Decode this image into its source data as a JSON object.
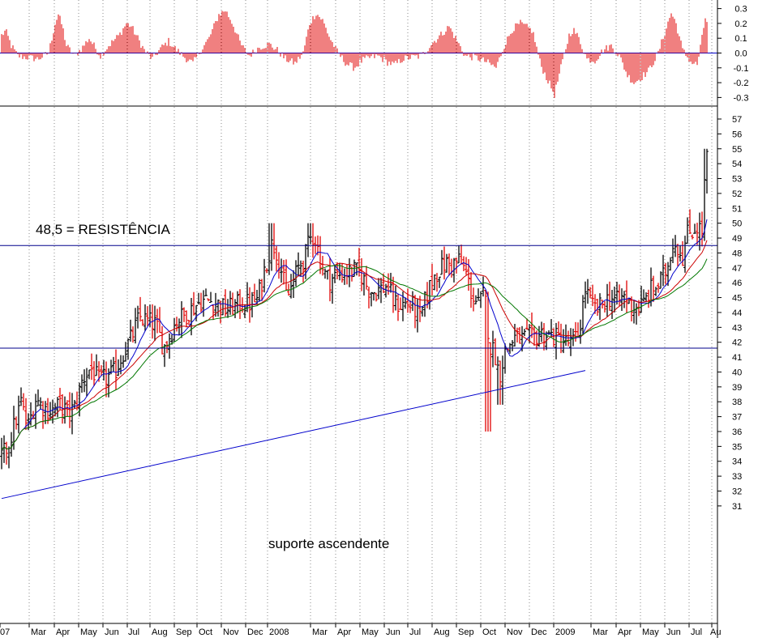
{
  "chart_data": [
    {
      "panel": "oscillator",
      "type": "bar",
      "yticks": [
        0.3,
        0.2,
        0.1,
        0.0,
        -0.1,
        -0.2,
        -0.3
      ],
      "ylim": [
        -0.36,
        0.36
      ],
      "zero_line": true,
      "bar_color": "#e00000",
      "anchors": [
        [
          0,
          0.12
        ],
        [
          5,
          0.15
        ],
        [
          12,
          0.05
        ],
        [
          20,
          -0.02
        ],
        [
          32,
          -0.03
        ],
        [
          45,
          -0.04
        ],
        [
          58,
          0.0
        ],
        [
          66,
          0.2
        ],
        [
          70,
          0.26
        ],
        [
          75,
          0.18
        ],
        [
          80,
          0.05
        ],
        [
          90,
          -0.02
        ],
        [
          100,
          0.04
        ],
        [
          108,
          0.1
        ],
        [
          115,
          0.04
        ],
        [
          122,
          -0.02
        ],
        [
          132,
          0.05
        ],
        [
          145,
          0.12
        ],
        [
          154,
          0.2
        ],
        [
          160,
          0.18
        ],
        [
          168,
          0.1
        ],
        [
          176,
          0.02
        ],
        [
          186,
          -0.04
        ],
        [
          196,
          0.03
        ],
        [
          206,
          0.08
        ],
        [
          216,
          0.02
        ],
        [
          226,
          -0.03
        ],
        [
          236,
          -0.07
        ],
        [
          246,
          0.02
        ],
        [
          256,
          0.1
        ],
        [
          268,
          0.26
        ],
        [
          276,
          0.29
        ],
        [
          285,
          0.2
        ],
        [
          295,
          0.06
        ],
        [
          305,
          -0.02
        ],
        [
          318,
          0.04
        ],
        [
          330,
          0.06
        ],
        [
          340,
          0.02
        ],
        [
          350,
          -0.04
        ],
        [
          362,
          -0.07
        ],
        [
          372,
          0.0
        ],
        [
          380,
          0.2
        ],
        [
          388,
          0.27
        ],
        [
          396,
          0.22
        ],
        [
          405,
          0.1
        ],
        [
          415,
          0.0
        ],
        [
          425,
          -0.07
        ],
        [
          435,
          -0.1
        ],
        [
          445,
          -0.05
        ],
        [
          455,
          -0.03
        ],
        [
          465,
          -0.02
        ],
        [
          475,
          -0.06
        ],
        [
          485,
          -0.08
        ],
        [
          495,
          -0.04
        ],
        [
          505,
          -0.03
        ],
        [
          518,
          -0.02
        ],
        [
          530,
          0.06
        ],
        [
          545,
          0.14
        ],
        [
          552,
          0.18
        ],
        [
          560,
          0.1
        ],
        [
          572,
          -0.02
        ],
        [
          585,
          -0.03
        ],
        [
          598,
          -0.06
        ],
        [
          610,
          -0.1
        ],
        [
          620,
          0.05
        ],
        [
          630,
          0.16
        ],
        [
          640,
          0.2
        ],
        [
          655,
          0.15
        ],
        [
          665,
          -0.08
        ],
        [
          675,
          -0.2
        ],
        [
          682,
          -0.28
        ],
        [
          690,
          -0.1
        ],
        [
          700,
          0.12
        ],
        [
          705,
          0.16
        ],
        [
          712,
          0.1
        ],
        [
          722,
          -0.04
        ],
        [
          732,
          -0.05
        ],
        [
          742,
          0.02
        ],
        [
          752,
          0.05
        ],
        [
          762,
          -0.02
        ],
        [
          772,
          -0.15
        ],
        [
          780,
          -0.2
        ],
        [
          788,
          -0.17
        ],
        [
          798,
          -0.12
        ],
        [
          810,
          0.0
        ],
        [
          818,
          0.14
        ],
        [
          826,
          0.27
        ],
        [
          832,
          0.2
        ],
        [
          840,
          0.02
        ],
        [
          850,
          -0.06
        ],
        [
          858,
          -0.08
        ],
        [
          864,
          0.1
        ],
        [
          868,
          0.24
        ],
        [
          871,
          0.2
        ]
      ]
    },
    {
      "panel": "price",
      "type": "ohlc",
      "title": "",
      "yticks": [
        57,
        56,
        55,
        54,
        53,
        52,
        51,
        50,
        49,
        48,
        47,
        46,
        45,
        44,
        43,
        42,
        41,
        40,
        39,
        38,
        37,
        36,
        35,
        34,
        33,
        32,
        31
      ],
      "ylim": [
        30.3,
        57.7
      ],
      "xticks": [
        "07",
        "Mar",
        "Apr",
        "May",
        "Jun",
        "Jul",
        "Aug",
        "Sep",
        "Oct",
        "Nov",
        "Dec",
        "2008",
        "Mar",
        "Apr",
        "May",
        "Jun",
        "Jul",
        "Aug",
        "Sep",
        "Oct",
        "Nov",
        "Dec",
        "2009",
        "Mar",
        "Apr",
        "May",
        "Jun",
        "Jul",
        "Au"
      ],
      "grid": {
        "vertical": "dotted",
        "horizontal": false
      },
      "close_anchors": [
        [
          0,
          34.3
        ],
        [
          8,
          35
        ],
        [
          16,
          36.5
        ],
        [
          24,
          38
        ],
        [
          32,
          36.2
        ],
        [
          42,
          38.2
        ],
        [
          52,
          37.6
        ],
        [
          62,
          37.4
        ],
        [
          72,
          37.8
        ],
        [
          82,
          37.2
        ],
        [
          90,
          37.6
        ],
        [
          100,
          39.5
        ],
        [
          110,
          40.3
        ],
        [
          120,
          39.4
        ],
        [
          130,
          39.6
        ],
        [
          140,
          40
        ],
        [
          150,
          41.3
        ],
        [
          160,
          42.3
        ],
        [
          170,
          43.7
        ],
        [
          180,
          43.4
        ],
        [
          190,
          43.2
        ],
        [
          200,
          41.6
        ],
        [
          208,
          42.5
        ],
        [
          216,
          43.5
        ],
        [
          226,
          43.8
        ],
        [
          236,
          44.3
        ],
        [
          246,
          44.8
        ],
        [
          256,
          44.8
        ],
        [
          266,
          44.6
        ],
        [
          276,
          44.2
        ],
        [
          286,
          44.4
        ],
        [
          296,
          44.6
        ],
        [
          306,
          44.6
        ],
        [
          316,
          44.9
        ],
        [
          326,
          47.3
        ],
        [
          334,
          48.7
        ],
        [
          340,
          48
        ],
        [
          346,
          46.6
        ],
        [
          352,
          44.9
        ],
        [
          358,
          45.8
        ],
        [
          366,
          47
        ],
        [
          374,
          47.7
        ],
        [
          380,
          48.9
        ],
        [
          386,
          49.2
        ],
        [
          392,
          47.8
        ],
        [
          398,
          46.6
        ],
        [
          405,
          46.2
        ],
        [
          412,
          46.5
        ],
        [
          420,
          46.6
        ],
        [
          428,
          46.7
        ],
        [
          436,
          46.8
        ],
        [
          444,
          46.5
        ],
        [
          452,
          45.6
        ],
        [
          460,
          45.4
        ],
        [
          468,
          45.6
        ],
        [
          476,
          45.8
        ],
        [
          484,
          44.6
        ],
        [
          492,
          44.5
        ],
        [
          500,
          44.6
        ],
        [
          508,
          44.4
        ],
        [
          516,
          43.5
        ],
        [
          524,
          45.1
        ],
        [
          532,
          46.3
        ],
        [
          540,
          46.9
        ],
        [
          548,
          47.3
        ],
        [
          556,
          47.2
        ],
        [
          564,
          47.5
        ],
        [
          572,
          46.8
        ],
        [
          580,
          45.2
        ],
        [
          588,
          44.5
        ],
        [
          596,
          45.3
        ],
        [
          602,
          41.7
        ],
        [
          608,
          41.4
        ],
        [
          614,
          39.7
        ],
        [
          620,
          41.2
        ],
        [
          626,
          41.8
        ],
        [
          632,
          42.3
        ],
        [
          640,
          42.2
        ],
        [
          648,
          42.3
        ],
        [
          656,
          42.3
        ],
        [
          664,
          42.6
        ],
        [
          672,
          42.5
        ],
        [
          680,
          42.4
        ],
        [
          688,
          42.2
        ],
        [
          696,
          42
        ],
        [
          704,
          41.9
        ],
        [
          712,
          42.6
        ],
        [
          720,
          45.6
        ],
        [
          728,
          44.4
        ],
        [
          736,
          44.2
        ],
        [
          744,
          44.8
        ],
        [
          752,
          45
        ],
        [
          760,
          44.7
        ],
        [
          768,
          45.1
        ],
        [
          776,
          44.5
        ],
        [
          784,
          44.3
        ],
        [
          792,
          44.6
        ],
        [
          800,
          45.5
        ],
        [
          808,
          45.7
        ],
        [
          816,
          46.4
        ],
        [
          822,
          47.2
        ],
        [
          828,
          48.8
        ],
        [
          834,
          48.4
        ],
        [
          840,
          47.8
        ],
        [
          846,
          49.3
        ],
        [
          852,
          49.5
        ],
        [
          858,
          49.8
        ],
        [
          864,
          49.4
        ],
        [
          868,
          53.8
        ],
        [
          870,
          54.3
        ]
      ],
      "series": [
        {
          "name": "",
          "kind": "ohlc",
          "color": "#000000",
          "down_color": "#e00000"
        },
        {
          "name": "",
          "kind": "ma",
          "period": 10,
          "color": "#0000cc"
        },
        {
          "name": "",
          "kind": "ma",
          "period": 20,
          "color": "#cc0000"
        },
        {
          "name": "",
          "kind": "ma",
          "period": 30,
          "color": "#007700"
        }
      ],
      "reference_lines": [
        {
          "kind": "horizontal",
          "value": 48.5,
          "color": "#00008b"
        },
        {
          "kind": "horizontal",
          "value": 41.6,
          "color": "#00008b"
        },
        {
          "kind": "trendline",
          "from_day": 0,
          "from_value": 31.5,
          "to_day": 720,
          "to_value": 40.1,
          "color": "#0000cc"
        }
      ],
      "annotations": {
        "resistance": "48,5 = RESISTÊNCIA",
        "support": "suporte ascendente"
      }
    }
  ]
}
